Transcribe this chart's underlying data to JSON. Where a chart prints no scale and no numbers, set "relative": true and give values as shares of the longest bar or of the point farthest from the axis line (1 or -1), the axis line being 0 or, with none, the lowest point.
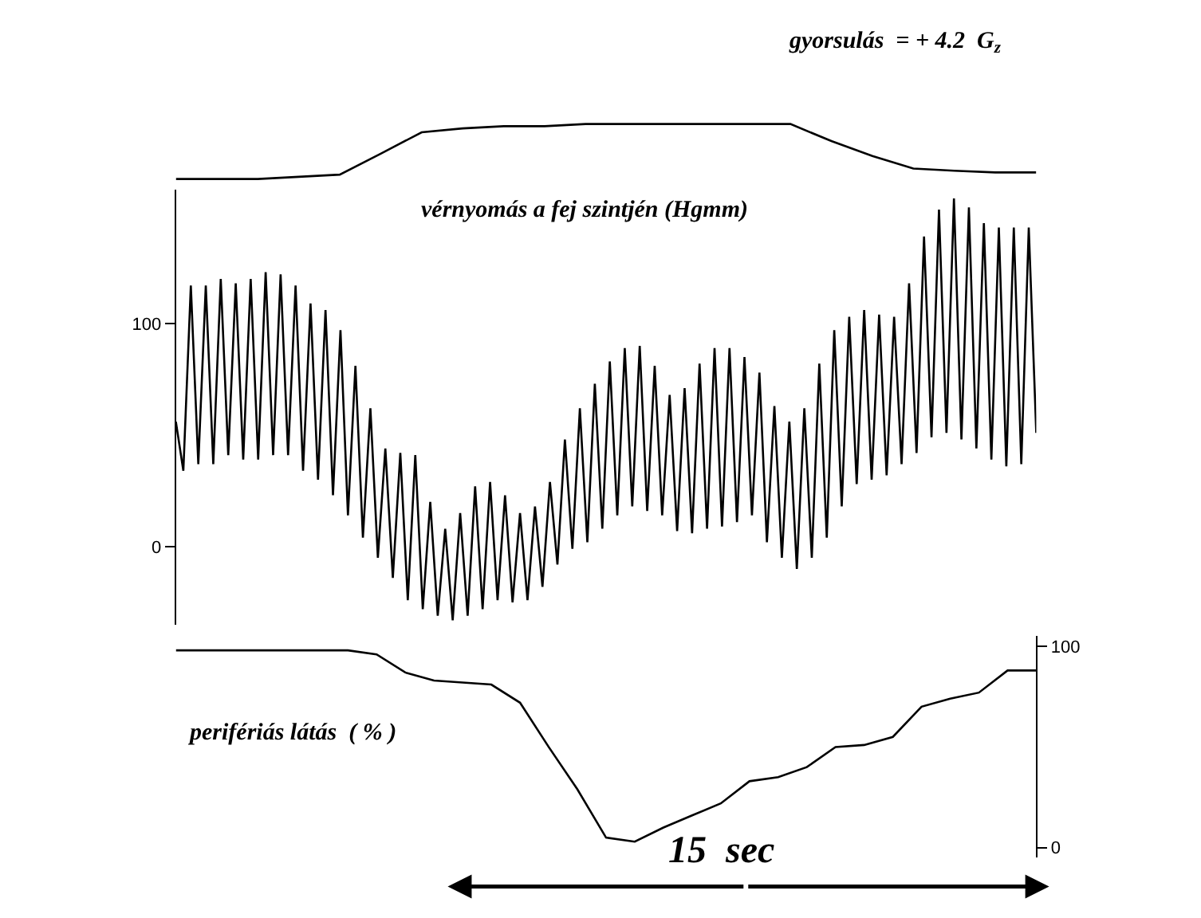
{
  "chart_data": [
    {
      "type": "line",
      "title": "gyorsulás  = + 4.2  G$_{z}$",
      "relative": true,
      "categories": [
        null,
        null,
        null,
        null,
        null,
        null,
        null,
        null,
        null,
        null,
        null,
        null,
        null,
        null,
        null,
        null,
        null,
        null,
        null,
        null,
        null,
        null
      ],
      "series": [
        {
          "color": "#000000",
          "values": [
            0,
            0,
            0,
            0.04,
            0.08,
            0.46,
            0.85,
            0.92,
            0.96,
            0.96,
            1,
            1,
            1,
            1,
            1,
            1,
            0.69,
            0.42,
            0.19,
            0.15,
            0.12,
            0.12
          ]
        }
      ]
    },
    {
      "type": "line",
      "title": "vérnyomás a fej szintjén (Hgmm)",
      "ylim": [
        -35,
        160
      ],
      "yticks": [
        0,
        100
      ],
      "tick_labels": "y",
      "categories": [
        null,
        null,
        null,
        null,
        null,
        null,
        null,
        null,
        null,
        null,
        null,
        null,
        null,
        null,
        null,
        null,
        null,
        null,
        null,
        null,
        null,
        null,
        null,
        null,
        null,
        null,
        null,
        null,
        null,
        null,
        null,
        null,
        null,
        null,
        null,
        null,
        null,
        null,
        null,
        null,
        null,
        null,
        null,
        null,
        null,
        null,
        null,
        null,
        null,
        null,
        null,
        null,
        null,
        null,
        null,
        null,
        null,
        null,
        null,
        null,
        null,
        null,
        null,
        null,
        null,
        null,
        null,
        null,
        null,
        null,
        null,
        null,
        null,
        null,
        null,
        null,
        null,
        null,
        null,
        null,
        null,
        null,
        null,
        null,
        null,
        null,
        null,
        null,
        null,
        null,
        null,
        null,
        null,
        null,
        null,
        null,
        null,
        null,
        null,
        null,
        null,
        null,
        null,
        null,
        null,
        null,
        null,
        null,
        null,
        null,
        null,
        null,
        null,
        null,
        null,
        null
      ],
      "series": [
        {
          "color": "#000000",
          "values": [
            56,
            34,
            117,
            37,
            117,
            37,
            120,
            41,
            118,
            39,
            120,
            39,
            123,
            41,
            122,
            41,
            117,
            34,
            109,
            30,
            106,
            23,
            97,
            14,
            81,
            4,
            62,
            -5,
            44,
            -14,
            42,
            -24,
            41,
            -28,
            20,
            -31,
            8,
            -33,
            15,
            -31,
            27,
            -28,
            29,
            -24,
            23,
            -25,
            15,
            -24,
            18,
            -18,
            29,
            -8,
            48,
            -1,
            62,
            2,
            73,
            8,
            83,
            14,
            89,
            18,
            90,
            16,
            81,
            14,
            68,
            7,
            71,
            6,
            82,
            8,
            89,
            9,
            89,
            11,
            85,
            14,
            78,
            2,
            63,
            -5,
            56,
            -10,
            62,
            -5,
            82,
            4,
            97,
            18,
            103,
            28,
            106,
            30,
            104,
            32,
            103,
            37,
            118,
            42,
            139,
            49,
            151,
            51,
            156,
            48,
            152,
            44,
            145,
            39,
            143,
            36,
            143,
            37,
            143,
            51
          ]
        }
      ]
    },
    {
      "type": "line",
      "title": "perifériás látás  ( % )",
      "ylim": [
        -5,
        105
      ],
      "yticks": [
        0,
        100
      ],
      "tick_labels": "y",
      "annotations": [
        "15  sec"
      ],
      "categories": [
        null,
        null,
        null,
        null,
        null,
        null,
        null,
        null,
        null,
        null,
        null,
        null,
        null,
        null,
        null,
        null,
        null,
        null,
        null,
        null,
        null,
        null,
        null,
        null,
        null,
        null,
        null,
        null,
        null,
        null,
        null
      ],
      "series": [
        {
          "color": "#000000",
          "values": [
            98,
            98,
            98,
            98,
            98,
            98,
            98,
            96,
            87,
            83,
            82,
            81,
            72,
            50,
            29,
            5,
            3,
            10,
            16,
            22,
            33,
            35,
            40,
            50,
            51,
            55,
            70,
            74,
            77,
            88,
            88
          ]
        }
      ]
    }
  ]
}
